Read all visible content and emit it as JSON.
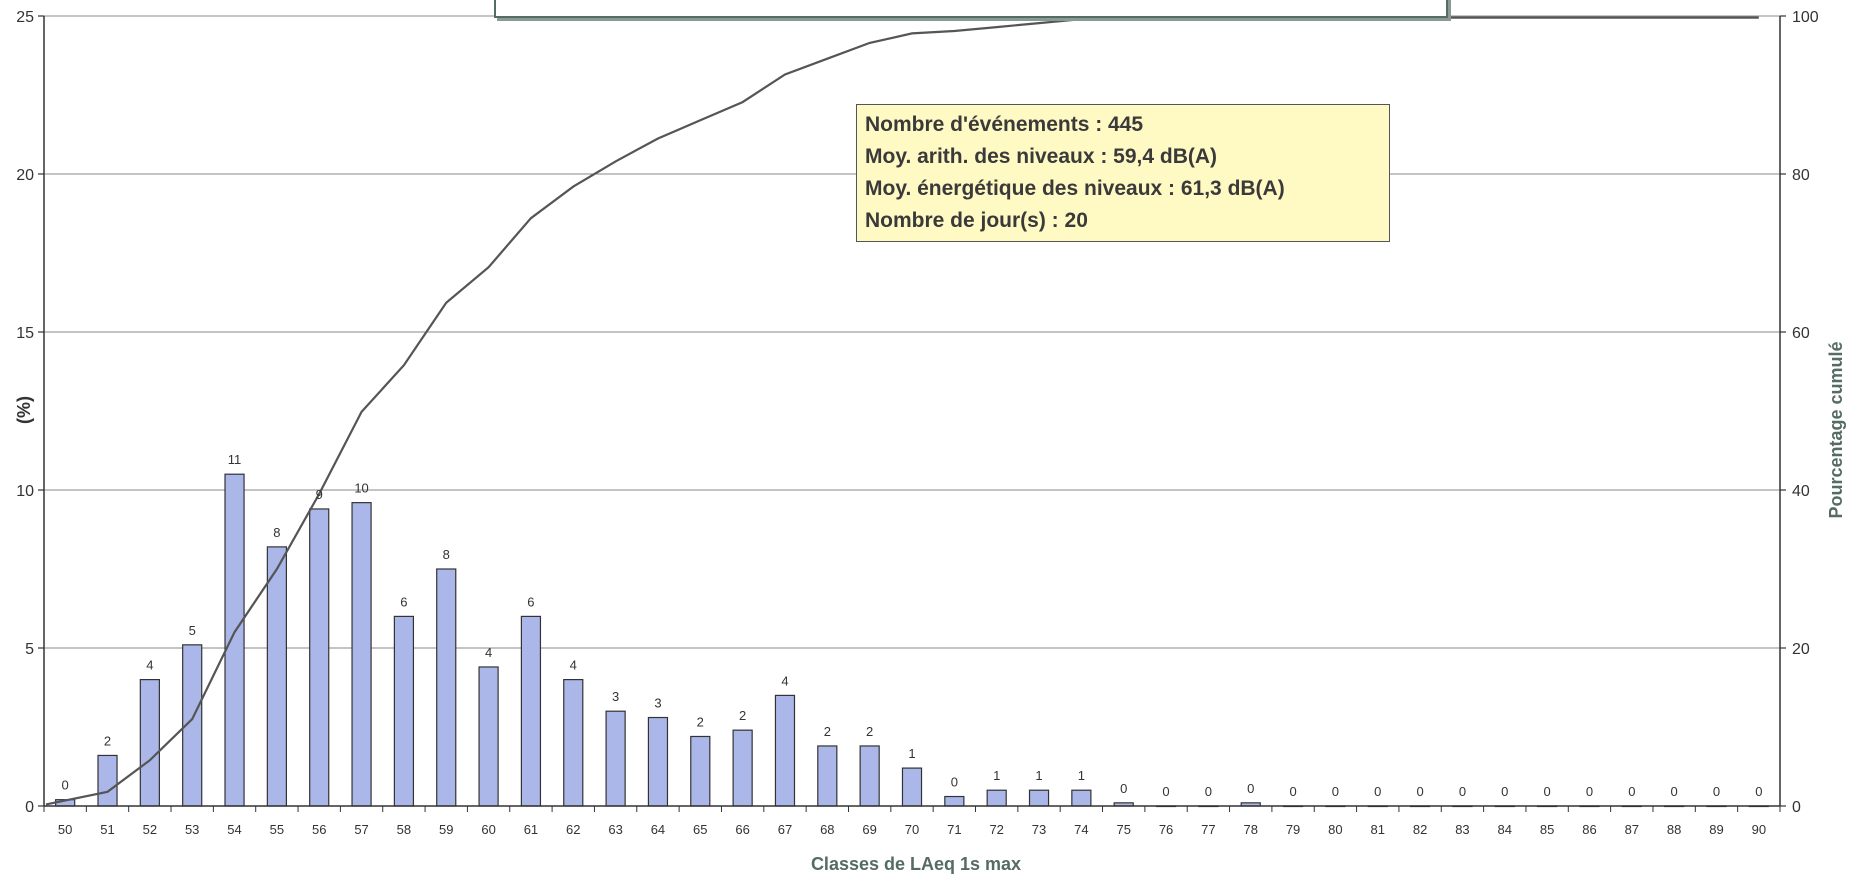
{
  "chart_data": {
    "type": "bar",
    "xlabel": "Classes de LAeq 1s max",
    "ylabel_left": "(%)",
    "ylabel_right": "Pourcentage cumulé",
    "categories": [
      "50",
      "51",
      "52",
      "53",
      "54",
      "55",
      "56",
      "57",
      "58",
      "59",
      "60",
      "61",
      "62",
      "63",
      "64",
      "65",
      "66",
      "67",
      "68",
      "69",
      "70",
      "71",
      "72",
      "73",
      "74",
      "75",
      "76",
      "77",
      "78",
      "79",
      "80",
      "81",
      "82",
      "83",
      "84",
      "85",
      "86",
      "87",
      "88",
      "89",
      "90"
    ],
    "series": [
      {
        "type": "bar",
        "axis": "left",
        "values": [
          0.2,
          1.6,
          4.0,
          5.1,
          10.5,
          8.2,
          9.4,
          9.6,
          6.0,
          7.5,
          4.4,
          6.0,
          4.0,
          3.0,
          2.8,
          2.2,
          2.4,
          3.5,
          1.9,
          1.9,
          1.2,
          0.3,
          0.5,
          0.5,
          0.5,
          0.1,
          0,
          0,
          0.1,
          0,
          0,
          0,
          0,
          0,
          0,
          0,
          0,
          0,
          0,
          0,
          0
        ],
        "data_labels": [
          "0",
          "2",
          "4",
          "5",
          "11",
          "8",
          "9",
          "10",
          "6",
          "8",
          "4",
          "6",
          "4",
          "3",
          "3",
          "2",
          "2",
          "4",
          "2",
          "2",
          "1",
          "0",
          "1",
          "1",
          "1",
          "0",
          "0",
          "0",
          "0",
          "0",
          "0",
          "0",
          "0",
          "0",
          "0",
          "0",
          "0",
          "0",
          "0",
          "0",
          "0"
        ]
      },
      {
        "type": "line",
        "axis": "right",
        "values": [
          0.2,
          1.8,
          5.8,
          11.0,
          22.0,
          30.0,
          39.5,
          49.9,
          55.8,
          63.7,
          68.2,
          74.4,
          78.4,
          81.6,
          84.5,
          86.8,
          89.1,
          92.6,
          94.6,
          96.6,
          97.8,
          98.1,
          98.6,
          99.1,
          99.6,
          99.7,
          99.7,
          99.7,
          99.8,
          99.8,
          99.8,
          99.8,
          99.8,
          99.8,
          99.8,
          99.8,
          99.8,
          99.8,
          99.8,
          99.8,
          99.8
        ]
      }
    ],
    "y_left": {
      "min": 0,
      "max": 25,
      "ticks": [
        "0",
        "5",
        "10",
        "15",
        "20",
        "25"
      ]
    },
    "y_right": {
      "min": 0,
      "max": 100,
      "ticks": [
        "0",
        "20",
        "40",
        "60",
        "80",
        "100"
      ]
    },
    "grid": true,
    "colors": {
      "bar_fill": "#aab7e8",
      "bar_stroke": "#333333",
      "line": "#555555",
      "grid": "#8a8a8a",
      "axis_title": "#556b66"
    }
  },
  "stats_box": {
    "lines": [
      "Nombre d'événements : 445",
      "Moy. arith. des niveaux : 59,4 dB(A)",
      "Moy. énergétique des niveaux : 61,3 dB(A)",
      "Nombre de jour(s) : 20"
    ],
    "background": "#fff9c4"
  }
}
